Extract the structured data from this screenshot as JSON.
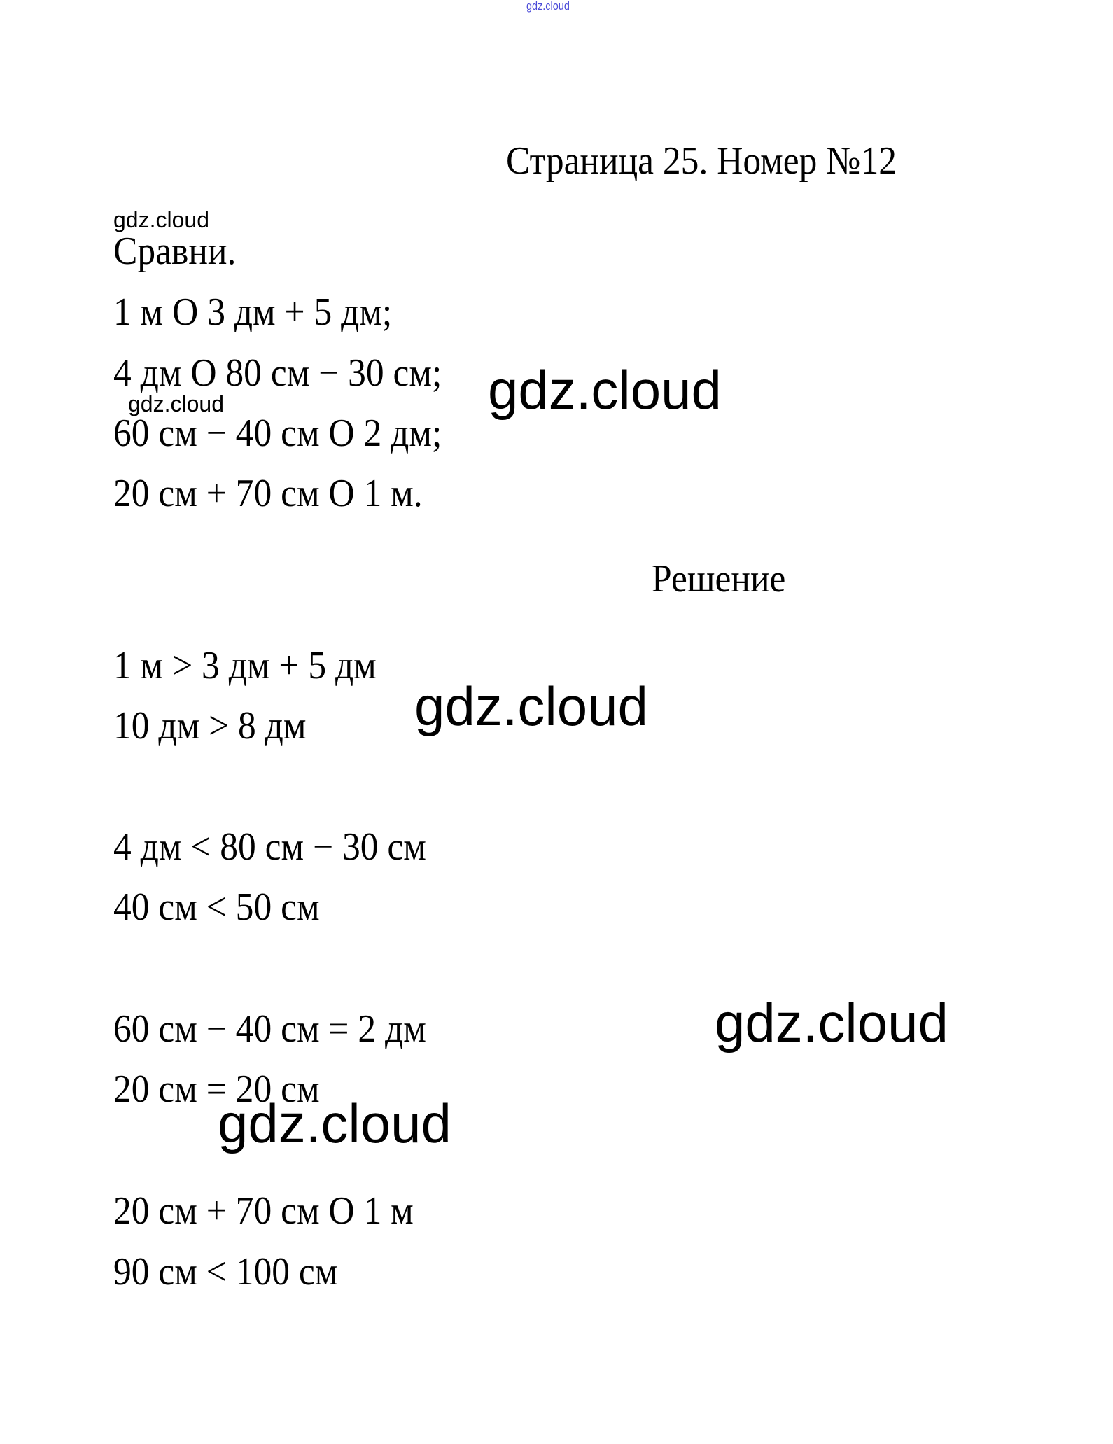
{
  "watermark": "gdz.cloud",
  "watermark_top_color": "#4a4ad8",
  "title": "Страница 25. Номер №12",
  "task": {
    "heading": "Сравни.",
    "lines": [
      "1 м О 3 дм + 5 дм;",
      "4 дм О 80 см − 30 см;",
      "60 см − 40 см О 2 дм;",
      "20 см + 70 см О 1 м."
    ]
  },
  "solution": {
    "heading": "Решение",
    "lines": [
      "1 м > 3 дм + 5 дм",
      "10 дм > 8 дм",
      "4 дм < 80 см − 30 см",
      "40 см < 50 см",
      "60 см − 40 см = 2 дм",
      "20 см = 20 см",
      "20 см + 70 см О 1 м",
      "90 см < 100 см"
    ]
  }
}
